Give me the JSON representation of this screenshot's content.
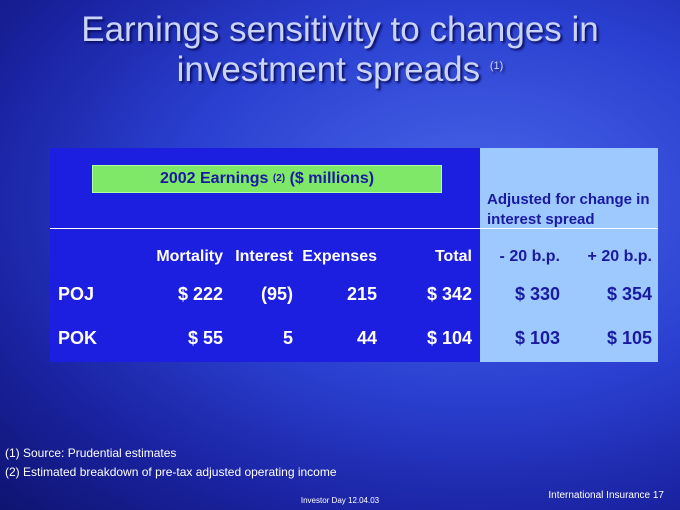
{
  "header": {
    "title_lines": [
      "Earnings sensitivity to changes in",
      "investment spreads"
    ],
    "title_note": "(1)"
  },
  "table": {
    "group_label": "2002 Earnings",
    "group_note": "(2)",
    "group_unit": "($ millions)",
    "adjusted_label": "Adjusted for change in interest spread",
    "columns": [
      "Mortality",
      "Interest",
      "Expenses",
      "Total",
      "- 20 b.p.",
      "+ 20 b.p."
    ],
    "rows": [
      [
        "POJ",
        "$ 222",
        "(95)",
        "215",
        "$ 342",
        "$ 330",
        "$ 354"
      ],
      [
        "POK",
        "$ 55",
        "5",
        "44",
        "$ 104",
        "$ 103",
        "$ 105"
      ]
    ]
  },
  "footnotes": [
    "(1) Source: Prudential estimates",
    "(2) Estimated breakdown of pre-tax adjusted operating income"
  ],
  "footer": {
    "event": "Investor Day 12.04.03",
    "section": "International Insurance",
    "page": "17"
  }
}
